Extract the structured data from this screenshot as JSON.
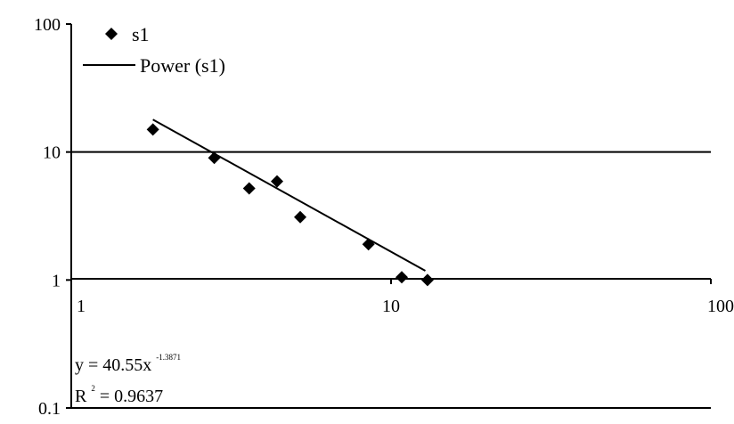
{
  "chart_data": {
    "type": "scatter",
    "x_scale": "log",
    "y_scale": "log",
    "xlim": [
      1,
      100
    ],
    "ylim": [
      0.1,
      100
    ],
    "x_ticks": [
      "1",
      "10",
      "100"
    ],
    "y_ticks": [
      "0.1",
      "1",
      "10",
      "100"
    ],
    "grid": "horizontal",
    "legend_position": "top-left",
    "series": [
      {
        "name": "s1",
        "marker": "diamond",
        "x": [
          1.8,
          2.8,
          3.6,
          4.4,
          5.2,
          8.5,
          10.8,
          13.0
        ],
        "y": [
          15,
          9.0,
          5.2,
          5.9,
          3.1,
          1.9,
          1.05,
          1.0
        ]
      }
    ],
    "trendline": {
      "name": "Power (s1)",
      "type": "power",
      "x_range": [
        1.8,
        12.8
      ],
      "equation_prefix": "y = 40.55x",
      "equation_exponent": "-1.3871",
      "r2_label": "R",
      "r2_sup": "2",
      "r2_value": " = 0.9637"
    }
  }
}
